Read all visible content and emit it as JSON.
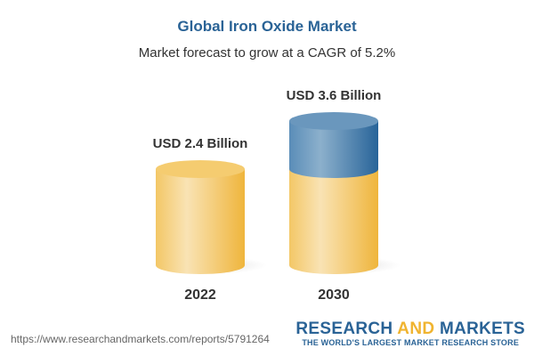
{
  "title": "Global Iron Oxide Market",
  "subtitle": "Market forecast to grow at a CAGR of 5.2%",
  "url": "https://www.researchandmarkets.com/reports/5791264",
  "logo": {
    "part1": "RESEARCH ",
    "part2": "AND",
    "part3": " MARKETS",
    "tagline": "THE WORLD'S LARGEST MARKET RESEARCH STORE"
  },
  "colors": {
    "base": "#f3c050",
    "growth": "#3f79a8",
    "title": "#2a6396",
    "logo_accent": "#f0b430"
  },
  "chart_data": {
    "type": "bar",
    "style": "3d-cylinder",
    "categories": [
      "2022",
      "2030"
    ],
    "values": [
      2.4,
      3.6
    ],
    "data_labels": [
      "USD 2.4 Billion",
      "USD 3.6 Billion"
    ],
    "series": [
      {
        "values": [
          2.4,
          2.4
        ]
      },
      {
        "values": [
          0,
          1.2
        ]
      }
    ],
    "grid": false
  }
}
